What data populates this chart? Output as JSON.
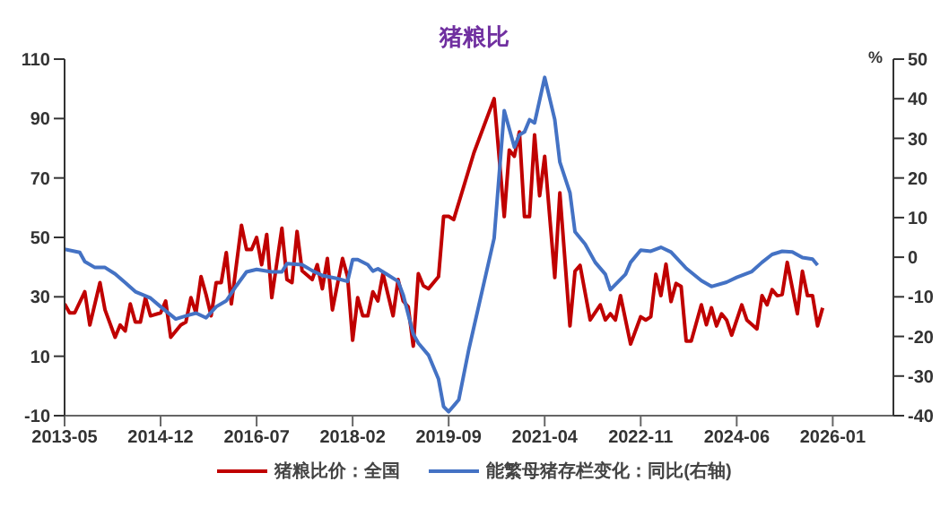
{
  "chart_data": {
    "type": "line",
    "title": "猪粮比",
    "y2label": "%",
    "legend": "bottom",
    "grid": false,
    "marker": "none",
    "line_style": "solid",
    "xlim": [
      "2013-05",
      "2027-01"
    ],
    "xticks": [
      "2013-05",
      "2014-12",
      "2016-07",
      "2018-02",
      "2019-09",
      "2021-04",
      "2022-11",
      "2024-06",
      "2026-01"
    ],
    "ylim": [
      -10,
      110
    ],
    "yticks": [
      -10,
      10,
      30,
      50,
      70,
      90,
      110
    ],
    "y2lim": [
      -40,
      50
    ],
    "y2ticks": [
      -40,
      -30,
      -20,
      -10,
      0,
      10,
      20,
      30,
      40,
      50
    ],
    "series": [
      {
        "name": "猪粮比价：全国",
        "color": "#c00000",
        "x": [
          "2013-05",
          "2013-06",
          "2013-07",
          "2013-09",
          "2013-10",
          "2013-12",
          "2014-01",
          "2014-03",
          "2014-04",
          "2014-05",
          "2014-06",
          "2014-07",
          "2014-08",
          "2014-09",
          "2014-10",
          "2014-12",
          "2015-01",
          "2015-02",
          "2015-04",
          "2015-05",
          "2015-06",
          "2015-07",
          "2015-08",
          "2015-09",
          "2015-10",
          "2015-11",
          "2015-12",
          "2016-01",
          "2016-02",
          "2016-03",
          "2016-04",
          "2016-05",
          "2016-06",
          "2016-07",
          "2016-08",
          "2016-09",
          "2016-10",
          "2016-12",
          "2017-01",
          "2017-02",
          "2017-03",
          "2017-04",
          "2017-06",
          "2017-07",
          "2017-08",
          "2017-09",
          "2017-10",
          "2017-12",
          "2018-01",
          "2018-02",
          "2018-03",
          "2018-04",
          "2018-05",
          "2018-06",
          "2018-07",
          "2018-08",
          "2018-09",
          "2018-10",
          "2018-11",
          "2018-12",
          "2019-01",
          "2019-02",
          "2019-03",
          "2019-04",
          "2019-05",
          "2019-07",
          "2019-08",
          "2019-09",
          "2019-10",
          "2020-02",
          "2020-06",
          "2020-08",
          "2020-09",
          "2020-10",
          "2020-11",
          "2020-12",
          "2021-01",
          "2021-02",
          "2021-03",
          "2021-04",
          "2021-06",
          "2021-07",
          "2021-09",
          "2021-10",
          "2021-11",
          "2022-01",
          "2022-03",
          "2022-04",
          "2022-05",
          "2022-06",
          "2022-07",
          "2022-09",
          "2022-11",
          "2022-12",
          "2023-01",
          "2023-02",
          "2023-03",
          "2023-04",
          "2023-05",
          "2023-06",
          "2023-07",
          "2023-08",
          "2023-09",
          "2023-11",
          "2023-12",
          "2024-01",
          "2024-02",
          "2024-03",
          "2024-04",
          "2024-05",
          "2024-07",
          "2024-08",
          "2024-10",
          "2024-11",
          "2024-12",
          "2025-01",
          "2025-02",
          "2025-03",
          "2025-04",
          "2025-06",
          "2025-07",
          "2025-08",
          "2025-09",
          "2025-10",
          "2025-11"
        ],
        "values": [
          27.6,
          24.6,
          24.6,
          31.7,
          20.5,
          34.8,
          25.6,
          16.4,
          20.5,
          18.5,
          27.6,
          21.5,
          21.5,
          29.7,
          23.6,
          24.6,
          28.6,
          16.4,
          20.5,
          21.5,
          29.7,
          24.6,
          36.8,
          30.7,
          23.6,
          34.8,
          34.8,
          44.9,
          27.6,
          40.8,
          54.1,
          45.9,
          45.9,
          50,
          40.8,
          51,
          29.7,
          53.1,
          35.8,
          34.8,
          52,
          38.8,
          35.8,
          40.8,
          32.7,
          42.9,
          25.6,
          42.9,
          36.8,
          15.4,
          29.7,
          23.6,
          23.6,
          31.7,
          28.6,
          37.8,
          30.7,
          23.6,
          35.8,
          28.6,
          26.6,
          13.4,
          37.8,
          33.7,
          32.7,
          36.8,
          57.1,
          57.1,
          56,
          78.5,
          96.7,
          57,
          79.4,
          77.3,
          85.5,
          57,
          57,
          84.5,
          64,
          77.3,
          36.5,
          65,
          20.2,
          38.6,
          40.6,
          22.2,
          27.3,
          22.2,
          24.3,
          22.2,
          30.4,
          14.1,
          23.3,
          22.2,
          23.3,
          37.6,
          30.4,
          41,
          28.4,
          34.5,
          33.5,
          15.1,
          15.1,
          27.3,
          20.6,
          26.3,
          20.2,
          24.3,
          22.2,
          17.1,
          27.3,
          22.2,
          19.2,
          30.4,
          27.3,
          32.4,
          30.4,
          30.8,
          41.6,
          24.3,
          38.6,
          30.4,
          30.4,
          20.2,
          26.3
        ]
      },
      {
        "name": "能繁母猪存栏变化：同比(右轴)",
        "color": "#4472c4",
        "axis": "y2",
        "x": [
          "2013-05",
          "2013-08",
          "2013-09",
          "2013-11",
          "2014-01",
          "2014-03",
          "2014-05",
          "2014-07",
          "2014-10",
          "2014-12",
          "2015-03",
          "2015-05",
          "2015-07",
          "2015-09",
          "2015-11",
          "2016-01",
          "2016-03",
          "2016-05",
          "2016-07",
          "2016-10",
          "2016-12",
          "2017-01",
          "2017-04",
          "2017-06",
          "2017-08",
          "2017-11",
          "2018-01",
          "2018-02",
          "2018-03",
          "2018-05",
          "2018-06",
          "2018-07",
          "2018-09",
          "2018-11",
          "2018-12",
          "2019-02",
          "2019-03",
          "2019-05",
          "2019-07",
          "2019-08",
          "2019-09",
          "2019-11",
          "2020-01",
          "2020-06",
          "2020-08",
          "2020-10",
          "2020-11",
          "2020-12",
          "2021-01",
          "2021-02",
          "2021-04",
          "2021-06",
          "2021-07",
          "2021-09",
          "2021-10",
          "2021-12",
          "2022-02",
          "2022-04",
          "2022-05",
          "2022-08",
          "2022-09",
          "2022-11",
          "2023-01",
          "2023-03",
          "2023-05",
          "2023-08",
          "2023-11",
          "2024-01",
          "2024-04",
          "2024-06",
          "2024-09",
          "2024-11",
          "2025-01",
          "2025-03",
          "2025-05",
          "2025-07",
          "2025-09",
          "2025-10"
        ],
        "values": [
          2.0,
          1.2,
          -1.1,
          -2.6,
          -2.6,
          -4.2,
          -6.4,
          -8.7,
          -10.3,
          -12.5,
          -15.6,
          -14.8,
          -14.1,
          -15.3,
          -12.5,
          -11,
          -7.2,
          -3.7,
          -3.1,
          -3.7,
          -3.7,
          -1.6,
          -1.9,
          -3.4,
          -4.6,
          -5.4,
          -6.1,
          -0.6,
          -0.6,
          -1.9,
          -3.5,
          -2.9,
          -4.5,
          -6.1,
          -9.5,
          -19.4,
          -21.7,
          -24.7,
          -30.8,
          -37.7,
          -39,
          -36,
          -23.2,
          4.8,
          37,
          27.8,
          30.9,
          31.6,
          34.7,
          33.9,
          45.4,
          34.7,
          24,
          16.3,
          6.4,
          3.3,
          -1.3,
          -4.3,
          -8.2,
          -4.3,
          -1.3,
          1.8,
          1.5,
          2.5,
          1.3,
          -2.8,
          -5.9,
          -7.4,
          -6.3,
          -5.1,
          -3.6,
          -1.3,
          0.7,
          1.5,
          1.3,
          -0.1,
          -0.5,
          -2
        ]
      }
    ]
  }
}
